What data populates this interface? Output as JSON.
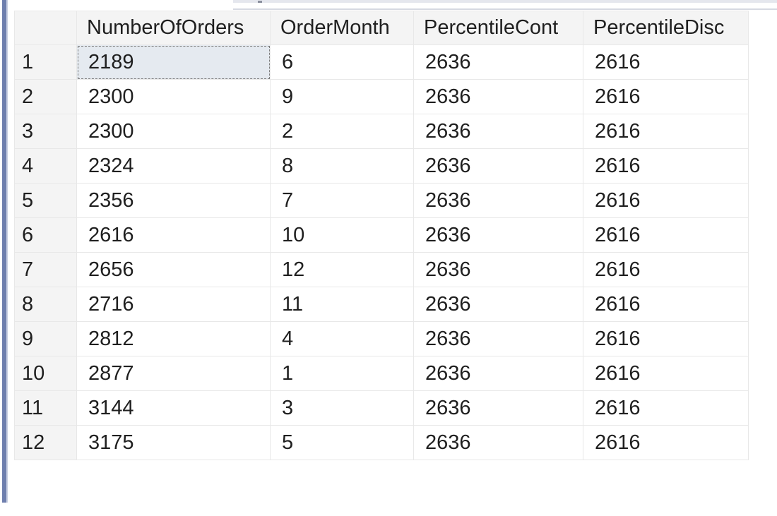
{
  "grid": {
    "columns": [
      "NumberOfOrders",
      "OrderMonth",
      "PercentileCont",
      "PercentileDisc"
    ],
    "rows": [
      {
        "num": "1",
        "cells": [
          "2189",
          "6",
          "2636",
          "2616"
        ]
      },
      {
        "num": "2",
        "cells": [
          "2300",
          "9",
          "2636",
          "2616"
        ]
      },
      {
        "num": "3",
        "cells": [
          "2300",
          "2",
          "2636",
          "2616"
        ]
      },
      {
        "num": "4",
        "cells": [
          "2324",
          "8",
          "2636",
          "2616"
        ]
      },
      {
        "num": "5",
        "cells": [
          "2356",
          "7",
          "2636",
          "2616"
        ]
      },
      {
        "num": "6",
        "cells": [
          "2616",
          "10",
          "2636",
          "2616"
        ]
      },
      {
        "num": "7",
        "cells": [
          "2656",
          "12",
          "2636",
          "2616"
        ]
      },
      {
        "num": "8",
        "cells": [
          "2716",
          "11",
          "2636",
          "2616"
        ]
      },
      {
        "num": "9",
        "cells": [
          "2812",
          "4",
          "2636",
          "2616"
        ]
      },
      {
        "num": "10",
        "cells": [
          "2877",
          "1",
          "2636",
          "2616"
        ]
      },
      {
        "num": "11",
        "cells": [
          "3144",
          "3",
          "2636",
          "2616"
        ]
      },
      {
        "num": "12",
        "cells": [
          "3175",
          "5",
          "2636",
          "2616"
        ]
      }
    ],
    "selected_cell": "2189"
  },
  "colors": {
    "frame_accent": "#6f7fae",
    "header_background": "#f4f4f4",
    "selected_cell_background": "#e5eaf0",
    "gridline": "#e8e8e8"
  }
}
